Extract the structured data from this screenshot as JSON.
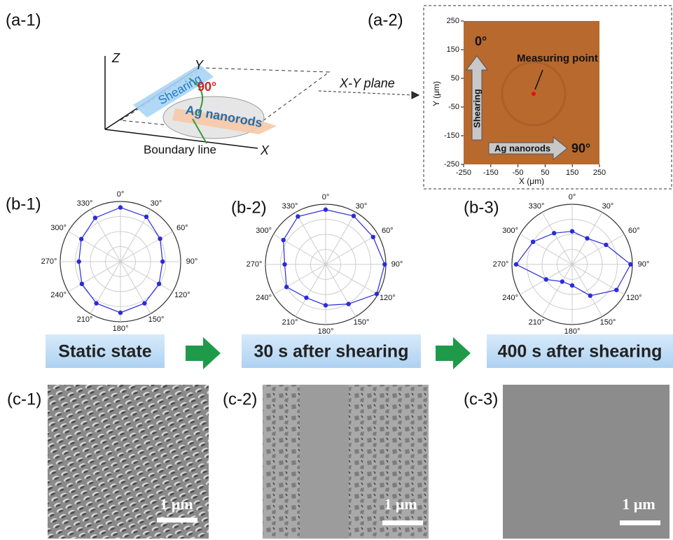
{
  "panels": {
    "a1": {
      "label": "(a-1)",
      "axis_z": "Z",
      "axis_y": "Y",
      "axis_x": "X",
      "shearing": "Shearing",
      "angle": "90°",
      "nanorods": "Ag nanorods",
      "boundary": "Boundary line",
      "plane": "X-Y plane"
    },
    "a2": {
      "label": "(a-2)",
      "xlabel": "X (μm)",
      "ylabel": "Y (μm)",
      "xlim": [
        -250,
        250
      ],
      "ylim": [
        -250,
        250
      ],
      "xticks": [
        -250,
        -150,
        -50,
        50,
        150,
        250
      ],
      "yticks": [
        250,
        150,
        50,
        -50,
        -150,
        -250
      ],
      "zero_label": "0°",
      "measuring": "Measuring point",
      "shearing": "Shearing",
      "nanorods": "Ag nanorods",
      "ninety": "90°"
    },
    "flow": [
      "Static state",
      "30 s after shearing",
      "400 s after shearing"
    ],
    "sem": [
      {
        "label": "(c-1)",
        "scale": "1 μm"
      },
      {
        "label": "(c-2)",
        "scale": "1 μm"
      },
      {
        "label": "(c-3)",
        "scale": "1 μm"
      }
    ]
  },
  "chart_data": [
    {
      "type": "polar",
      "title": "(b-1)",
      "color": "#2b2bd8",
      "rlim": [
        0,
        1
      ],
      "categories": [
        "0°",
        "30°",
        "60°",
        "90°",
        "120°",
        "150°",
        "180°",
        "210°",
        "240°",
        "270°",
        "300°",
        "330°"
      ],
      "values": [
        0.9,
        0.86,
        0.76,
        0.7,
        0.74,
        0.8,
        0.85,
        0.8,
        0.74,
        0.69,
        0.75,
        0.84
      ]
    },
    {
      "type": "polar",
      "title": "(b-2)",
      "color": "#2b2bd8",
      "rlim": [
        0,
        1
      ],
      "categories": [
        "0°",
        "30°",
        "60°",
        "90°",
        "120°",
        "150°",
        "180°",
        "210°",
        "240°",
        "270°",
        "300°",
        "330°"
      ],
      "values": [
        0.91,
        0.93,
        0.91,
        0.98,
        0.98,
        0.76,
        0.68,
        0.64,
        0.75,
        0.68,
        0.81,
        0.92
      ]
    },
    {
      "type": "polar",
      "title": "(b-3)",
      "color": "#2b2bd8",
      "rlim": [
        0,
        1
      ],
      "categories": [
        "0°",
        "30°",
        "60°",
        "90°",
        "120°",
        "150°",
        "180°",
        "210°",
        "240°",
        "270°",
        "300°",
        "330°"
      ],
      "values": [
        0.55,
        0.5,
        0.65,
        0.97,
        0.85,
        0.6,
        0.35,
        0.33,
        0.5,
        0.93,
        0.75,
        0.6
      ]
    }
  ]
}
